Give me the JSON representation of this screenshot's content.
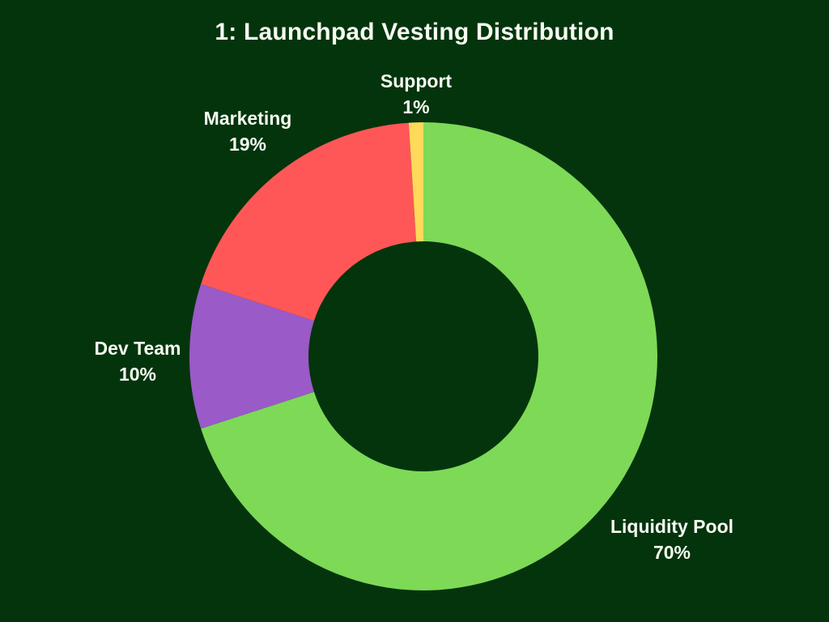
{
  "background_color": "#04340C",
  "text_color": "#F7FBF2",
  "chart_data": {
    "type": "pie",
    "subtype": "donut",
    "title": "1: Launchpad Vesting Distribution",
    "start_angle_deg": 0,
    "direction": "clockwise",
    "donut_hole_ratio": 0.49,
    "legend": "none",
    "labels_position": "outside",
    "slices": [
      {
        "label": "Liquidity Pool",
        "value": 70,
        "pct_label": "70%",
        "color": "#7ED957"
      },
      {
        "label": "Dev Team",
        "value": 10,
        "pct_label": "10%",
        "color": "#9A5AC8"
      },
      {
        "label": "Marketing",
        "value": 19,
        "pct_label": "19%",
        "color": "#FF5757"
      },
      {
        "label": "Support",
        "value": 1,
        "pct_label": "1%",
        "color": "#FFD95A"
      }
    ]
  }
}
